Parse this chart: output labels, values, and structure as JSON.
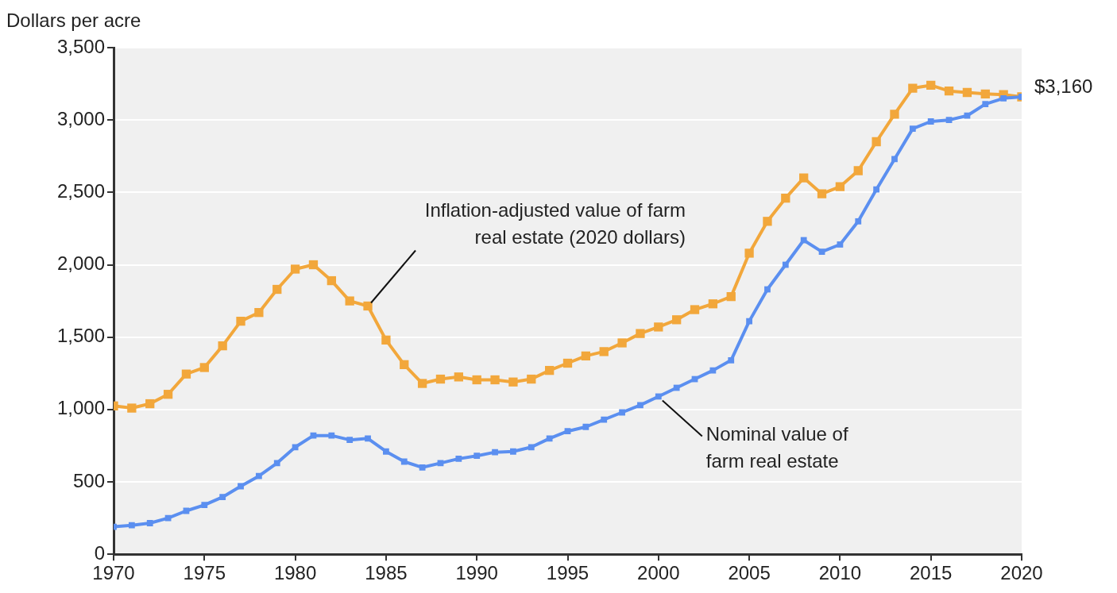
{
  "chart_data": {
    "type": "line",
    "ylabel": "Dollars per acre",
    "x": [
      1970,
      1971,
      1972,
      1973,
      1974,
      1975,
      1976,
      1977,
      1978,
      1979,
      1980,
      1981,
      1982,
      1983,
      1984,
      1985,
      1986,
      1987,
      1988,
      1989,
      1990,
      1991,
      1992,
      1993,
      1994,
      1995,
      1996,
      1997,
      1998,
      1999,
      2000,
      2001,
      2002,
      2003,
      2004,
      2005,
      2006,
      2007,
      2008,
      2009,
      2010,
      2011,
      2012,
      2013,
      2014,
      2015,
      2016,
      2017,
      2018,
      2019,
      2020
    ],
    "series": [
      {
        "color": "#f2a73b",
        "values": [
          1025,
          1010,
          1040,
          1105,
          1245,
          1290,
          1440,
          1610,
          1670,
          1830,
          1970,
          2000,
          1890,
          1750,
          1715,
          1480,
          1310,
          1180,
          1210,
          1225,
          1205,
          1205,
          1190,
          1210,
          1270,
          1320,
          1370,
          1400,
          1460,
          1525,
          1570,
          1620,
          1690,
          1730,
          1780,
          2080,
          2300,
          2460,
          2600,
          2490,
          2540,
          2650,
          2850,
          3040,
          3220,
          3240,
          3200,
          3190,
          3180,
          3175,
          3160
        ]
      },
      {
        "color": "#5b8ff0",
        "values": [
          190,
          200,
          215,
          250,
          300,
          340,
          395,
          470,
          540,
          630,
          740,
          820,
          820,
          790,
          800,
          710,
          640,
          600,
          630,
          660,
          680,
          705,
          710,
          740,
          800,
          850,
          880,
          930,
          980,
          1030,
          1090,
          1150,
          1210,
          1270,
          1340,
          1610,
          1830,
          2000,
          2170,
          2090,
          2140,
          2300,
          2520,
          2730,
          2940,
          2990,
          3000,
          3030,
          3110,
          3150,
          3160
        ]
      }
    ],
    "xlim": [
      1970,
      2020
    ],
    "xticks": [
      1970,
      1975,
      1980,
      1985,
      1990,
      1995,
      2000,
      2005,
      2010,
      2015,
      2020
    ],
    "ylim": [
      0,
      3500
    ],
    "yticks": [
      0,
      500,
      {
        "value": 1000,
        "label": "1,000"
      },
      {
        "value": 1500,
        "label": "1,500"
      },
      {
        "value": 2000,
        "label": "2,000"
      },
      {
        "value": 2500,
        "label": "2,500"
      },
      {
        "value": 3000,
        "label": "3,000"
      },
      {
        "value": 3500,
        "label": "3,500"
      }
    ],
    "grid": "y",
    "legend": false,
    "marker": "square",
    "line_style": "solid",
    "annotations": [
      {
        "text": "Inflation-adjusted value of farm\nreal estate (2020 dollars)",
        "x": 1984,
        "y": 1715
      },
      {
        "text": "Nominal value of\nfarm real estate",
        "x": 2000,
        "y": 1090
      },
      {
        "text": "$3,160",
        "x": 2020,
        "y": 3160
      }
    ]
  }
}
